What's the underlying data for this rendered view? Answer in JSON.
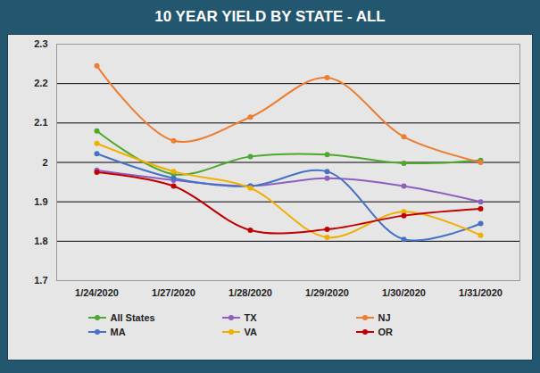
{
  "chart_data": {
    "type": "line",
    "title": "10 YEAR YIELD BY STATE - ALL",
    "categories": [
      "1/24/2020",
      "1/27/2020",
      "1/28/2020",
      "1/29/2020",
      "1/30/2020",
      "1/31/2020"
    ],
    "series": [
      {
        "name": "All States",
        "color": "#4ea72e",
        "values": [
          2.08,
          1.97,
          2.015,
          2.02,
          1.998,
          2.005
        ]
      },
      {
        "name": "TX",
        "color": "#8e5fbf",
        "values": [
          1.98,
          1.955,
          1.94,
          1.96,
          1.94,
          1.9
        ]
      },
      {
        "name": "NJ",
        "color": "#ed7d31",
        "values": [
          2.245,
          2.055,
          2.115,
          2.215,
          2.065,
          2.0
        ]
      },
      {
        "name": "MA",
        "color": "#4472c4",
        "values": [
          2.022,
          1.96,
          1.94,
          1.977,
          1.805,
          1.845
        ]
      },
      {
        "name": "VA",
        "color": "#f0b000",
        "values": [
          2.048,
          1.977,
          1.935,
          1.81,
          1.875,
          1.815
        ]
      },
      {
        "name": "OR",
        "color": "#c00000",
        "values": [
          1.975,
          1.94,
          1.828,
          1.83,
          1.865,
          1.882
        ]
      }
    ],
    "ylim": [
      1.7,
      2.3
    ],
    "yticks": [
      1.7,
      1.8,
      1.9,
      2,
      2.1,
      2.2,
      2.3
    ],
    "grid": true,
    "legend": "bottom",
    "marker": "circle",
    "line_style": "smooth"
  }
}
